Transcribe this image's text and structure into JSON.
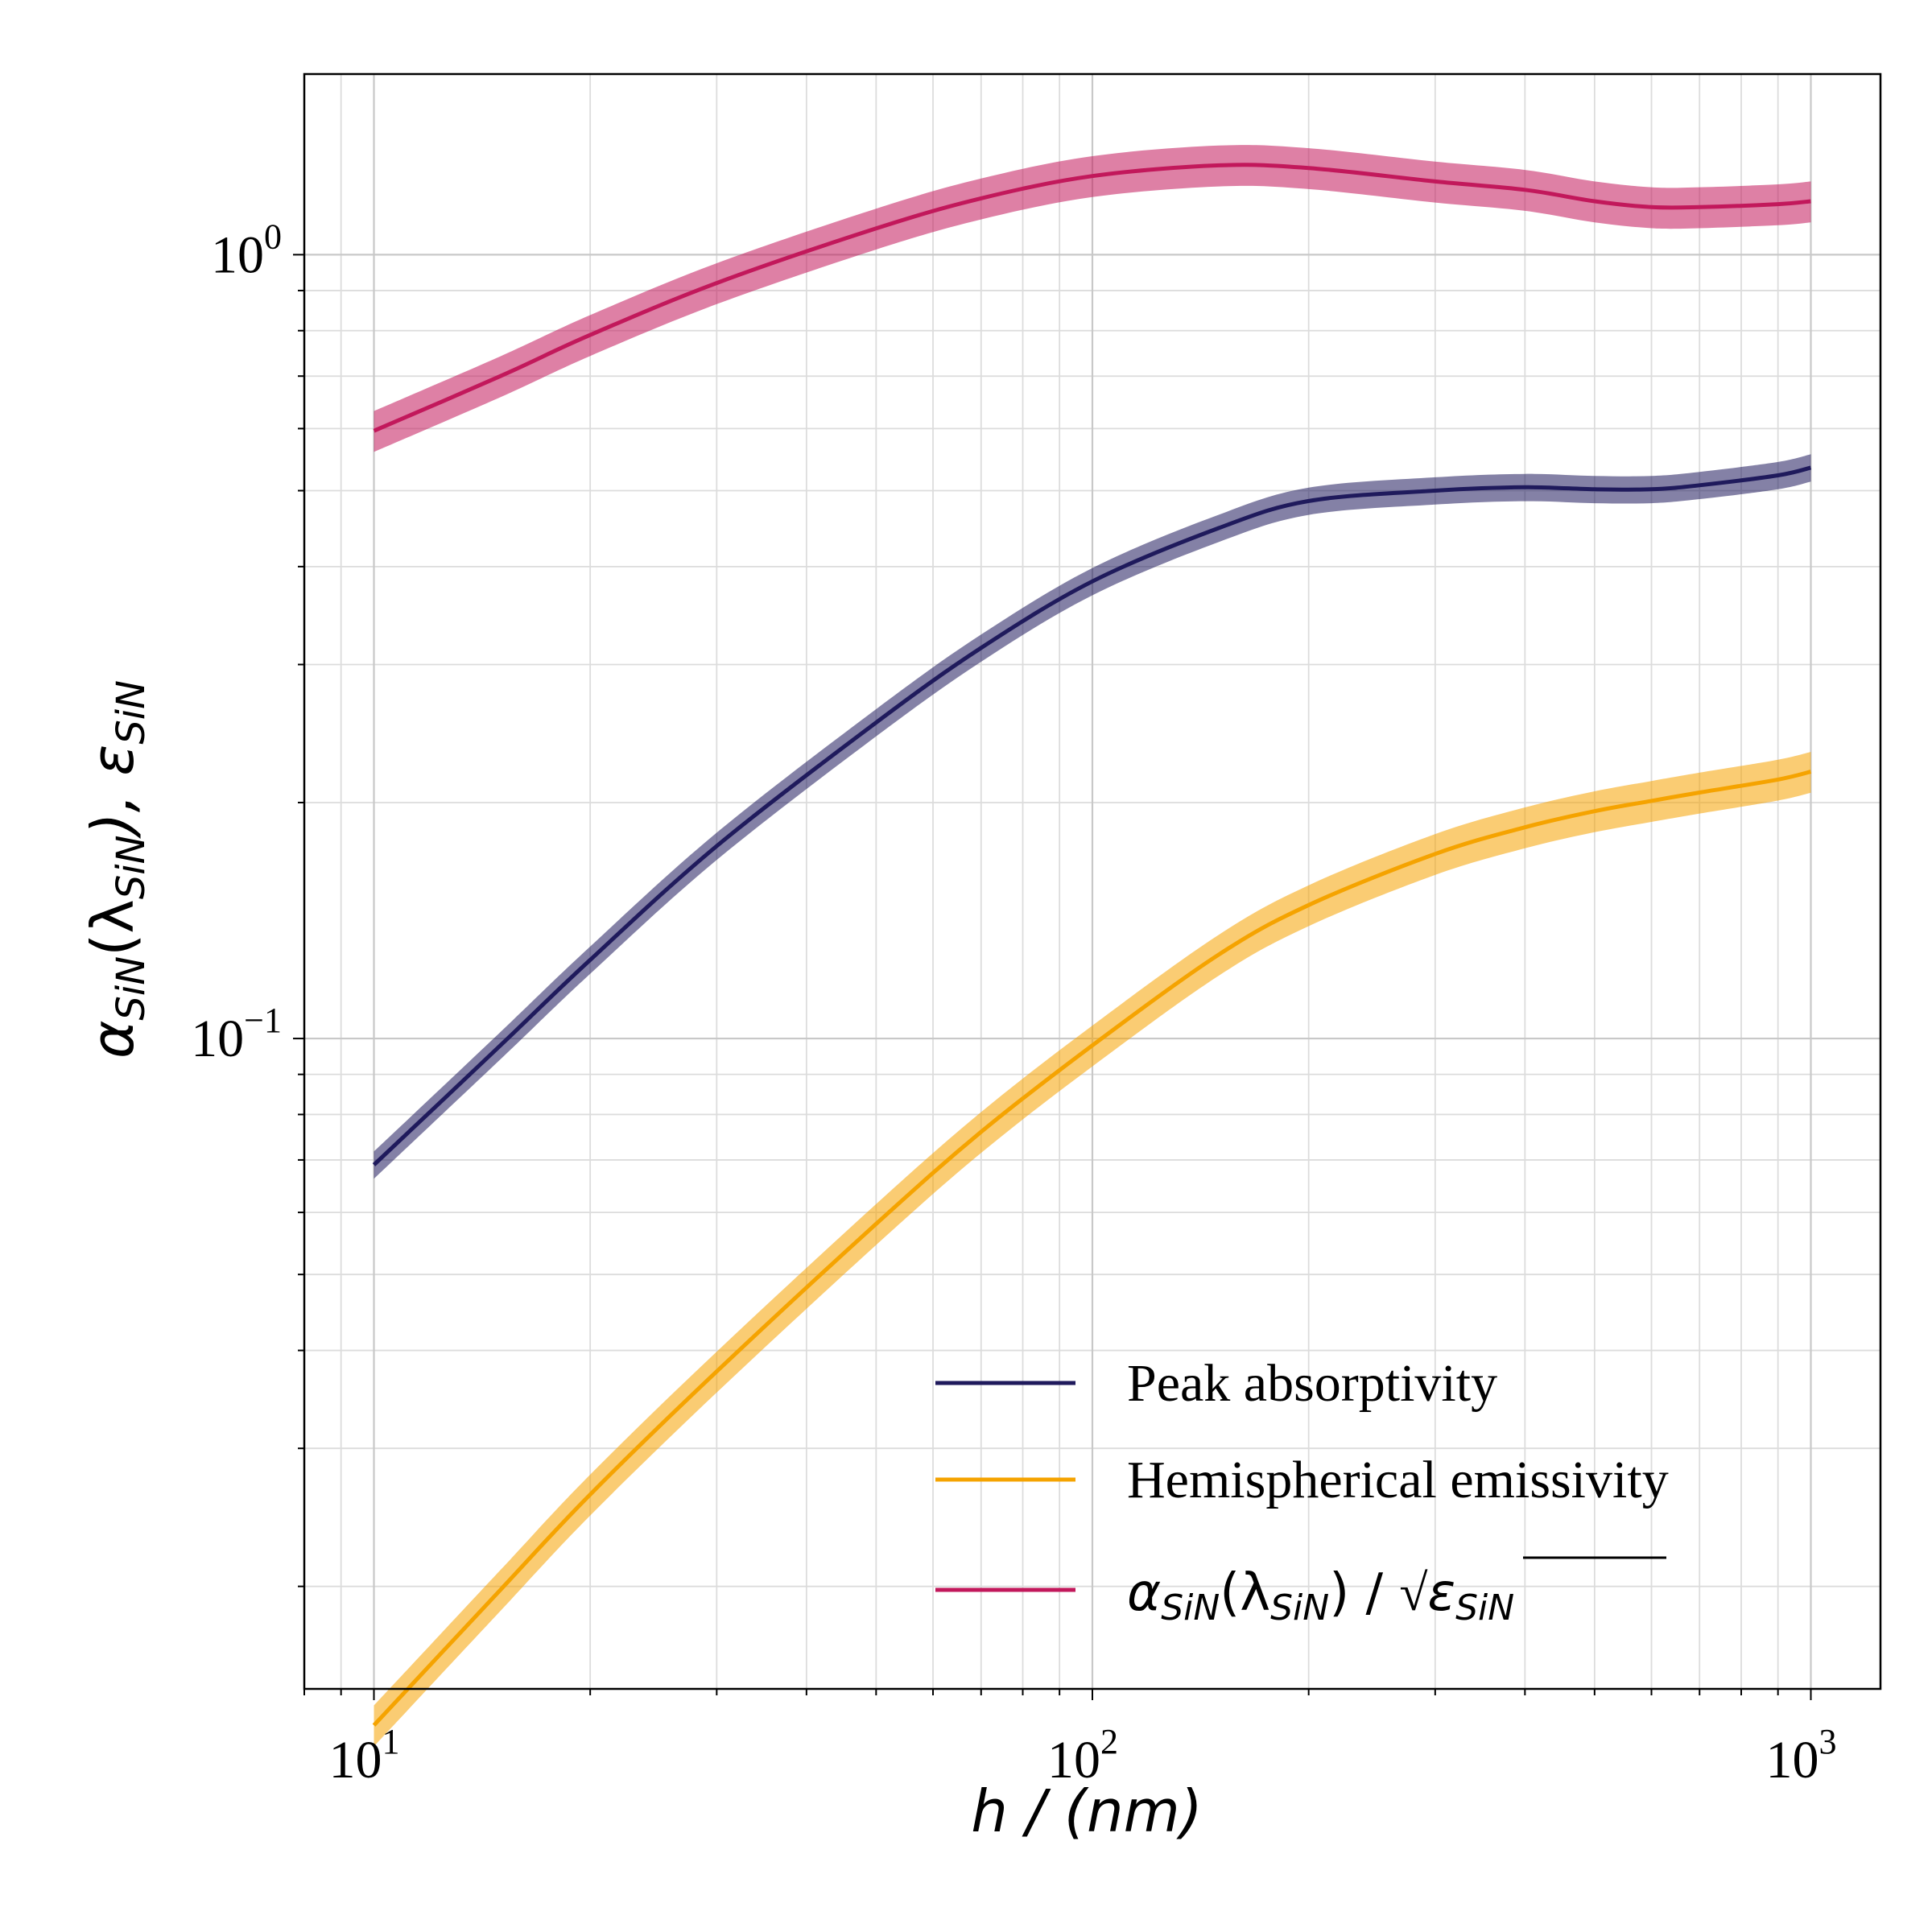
{
  "chart_data": {
    "type": "line",
    "title": "",
    "xlabel": "h / (nm)",
    "ylabel": "α_SiN(λ_SiN),  ε_SiN",
    "ylabel_parts": {
      "alpha": "α",
      "sub1": "SiN",
      "lambda": "(λ",
      "sub2": "SiN",
      "close": "),  ε",
      "sub3": "SiN"
    },
    "xscale": "log",
    "yscale": "log",
    "xlim": [
      8.0,
      1250
    ],
    "ylim": [
      0.0148,
      1.7
    ],
    "grid": true,
    "legend_position": "lower-right",
    "x_ticks": [
      {
        "value": 10,
        "base": "10",
        "exp": "1"
      },
      {
        "value": 100,
        "base": "10",
        "exp": "2"
      },
      {
        "value": 1000,
        "base": "10",
        "exp": "3"
      }
    ],
    "y_ticks": [
      {
        "value": 1.0,
        "base": "10",
        "exp": "0"
      },
      {
        "value": 0.1,
        "base": "10",
        "exp": "−1"
      }
    ],
    "x": [
      10,
      15,
      20,
      30,
      50,
      70,
      100,
      150,
      200,
      300,
      400,
      500,
      600,
      700,
      900,
      1000
    ],
    "series": [
      {
        "name": "Peak absorptivity",
        "color": "#1f1a5c",
        "band_fraction": 0.04,
        "values": [
          0.069,
          0.098,
          0.126,
          0.176,
          0.253,
          0.315,
          0.383,
          0.448,
          0.485,
          0.5,
          0.505,
          0.502,
          0.502,
          0.508,
          0.523,
          0.535
        ]
      },
      {
        "name": "Hemispherical emissivity",
        "color": "#f5a300",
        "band_fraction": 0.06,
        "values": [
          0.0133,
          0.0198,
          0.0262,
          0.0376,
          0.058,
          0.076,
          0.098,
          0.128,
          0.148,
          0.172,
          0.186,
          0.195,
          0.201,
          0.206,
          0.214,
          0.219
        ]
      },
      {
        "name": "α_SiN(λ_SiN) / √ε_SiN",
        "color": "#c2185b",
        "band_fraction": 0.06,
        "name_parts": {
          "alpha": "α",
          "sub1": "SiN",
          "lambda": "(λ",
          "sub2": "SiN",
          "close": ") / ",
          "root": "√",
          "eps": "ε",
          "sub3": "SiN"
        },
        "values": [
          0.596,
          0.7,
          0.79,
          0.92,
          1.08,
          1.18,
          1.26,
          1.3,
          1.29,
          1.24,
          1.21,
          1.17,
          1.15,
          1.15,
          1.16,
          1.17
        ]
      }
    ]
  }
}
